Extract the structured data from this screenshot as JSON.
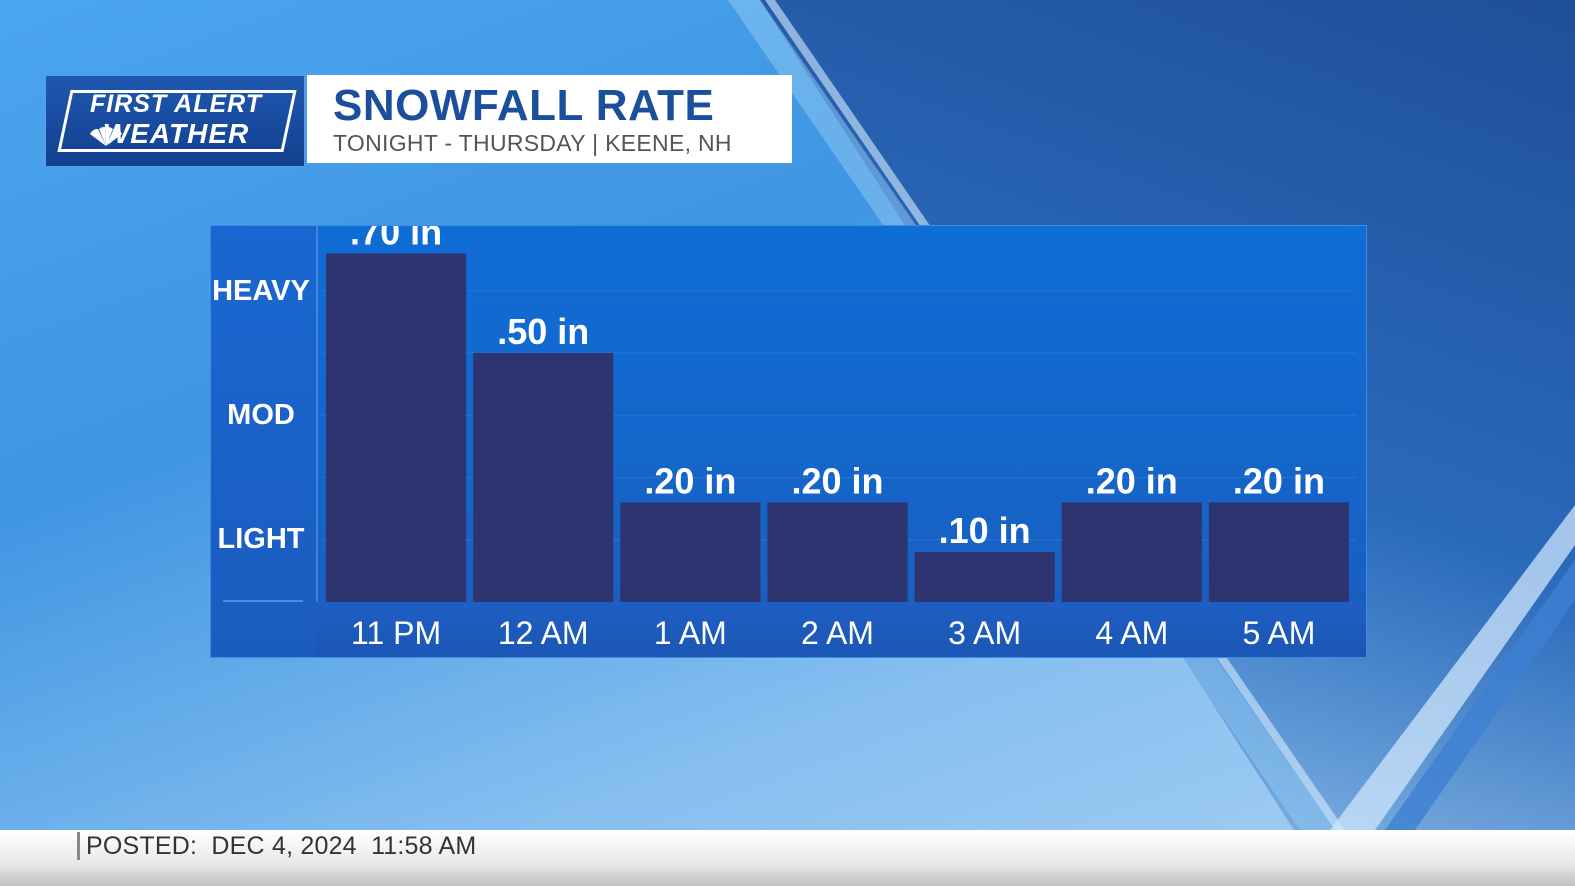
{
  "brand": {
    "line1": "FIRST ALERT",
    "line2": "WEATHER"
  },
  "header": {
    "title": "SNOWFALL RATE",
    "subtitle": "TONIGHT - THURSDAY | KEENE, NH"
  },
  "chart_data": {
    "type": "bar",
    "categories": [
      "11 PM",
      "12 AM",
      "1 AM",
      "2 AM",
      "3 AM",
      "4 AM",
      "5 AM"
    ],
    "values": [
      0.7,
      0.5,
      0.2,
      0.2,
      0.1,
      0.2,
      0.2
    ],
    "value_labels": [
      ".70 in",
      ".50 in",
      ".20 in",
      ".20 in",
      ".10 in",
      ".20 in",
      ".20 in"
    ],
    "y_categories": [
      "HEAVY",
      "MOD",
      "LIGHT"
    ],
    "y_category_values": [
      1.0,
      0.6,
      0.2
    ],
    "ylim": [
      0,
      1.0
    ],
    "bar_color": "#2d3470",
    "grid": true
  },
  "footer": {
    "posted": "POSTED:  DEC 4, 2024  11:58 AM"
  },
  "colors": {
    "title": "#1b4f9c",
    "panel": "#1565c8",
    "bar": "#2d3470"
  }
}
